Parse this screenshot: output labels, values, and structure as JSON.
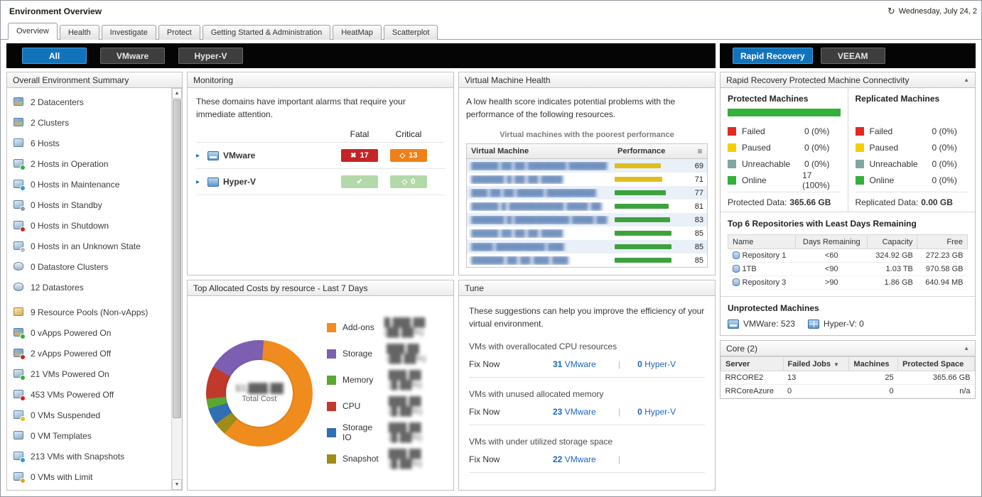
{
  "colors": {
    "accent_blue": "#1173bc",
    "fatal_red": "#c32427",
    "critical_orange": "#ef8018",
    "ok_green": "#b3d9aa",
    "online_green": "#35b03b",
    "link_blue": "#1766c0",
    "alert_orange": "#d9531e"
  },
  "window": {
    "title": "Environment Overview",
    "datetime": "Wednesday, July 24, 2"
  },
  "tabs": [
    {
      "label": "Overview",
      "active": true
    },
    {
      "label": "Health",
      "active": false
    },
    {
      "label": "Investigate",
      "active": false
    },
    {
      "label": "Protect",
      "active": false
    },
    {
      "label": "Getting Started & Administration",
      "active": false
    },
    {
      "label": "HeatMap",
      "active": false
    },
    {
      "label": "Scatterplot",
      "active": false
    }
  ],
  "toolbar": {
    "left": [
      {
        "label": "All",
        "active": true
      },
      {
        "label": "VMware",
        "active": false
      },
      {
        "label": "Hyper-V",
        "active": false
      }
    ],
    "right": [
      {
        "label": "Rapid Recovery",
        "active": true
      },
      {
        "label": "VEEAM",
        "active": false
      }
    ]
  },
  "summary": {
    "title": "Overall Environment Summary",
    "items": [
      {
        "label": "2 Datacenters",
        "icon": "datacenter-icon",
        "shape": "grid",
        "dot": null,
        "gap": false
      },
      {
        "label": "2 Clusters",
        "icon": "cluster-icon",
        "shape": "grid",
        "dot": null,
        "gap": false
      },
      {
        "label": "6 Hosts",
        "icon": "host-icon",
        "shape": "monitor",
        "dot": null,
        "gap": false
      },
      {
        "label": "2 Hosts in Operation",
        "icon": "host-operation-icon",
        "shape": "monitor",
        "dot": "#2eb135",
        "gap": false
      },
      {
        "label": "0 Hosts in Maintenance",
        "icon": "host-maintenance-icon",
        "shape": "monitor",
        "dot": "#2e9bd6",
        "gap": false
      },
      {
        "label": "0 Hosts in Standby",
        "icon": "host-standby-icon",
        "shape": "monitor",
        "dot": "#8a9aa8",
        "gap": false
      },
      {
        "label": "0 Hosts in Shutdown",
        "icon": "host-shutdown-icon",
        "shape": "monitor",
        "dot": "#d42020",
        "gap": false
      },
      {
        "label": "0 Hosts in an Unknown State",
        "icon": "host-unknown-icon",
        "shape": "monitor",
        "dot": "#b8b8b8",
        "gap": false
      },
      {
        "label": "0 Datastore Clusters",
        "icon": "datastore-cluster-icon",
        "shape": "cylinder",
        "dot": null,
        "gap": false
      },
      {
        "label": "12 Datastores",
        "icon": "datastore-icon",
        "shape": "cylinder",
        "dot": null,
        "gap": false
      },
      {
        "label": "9 Resource Pools (Non-vApps)",
        "icon": "resource-pool-icon",
        "shape": "box",
        "dot": null,
        "gap": true
      },
      {
        "label": "0 vApps Powered On",
        "icon": "vapp-powered-on-icon",
        "shape": "grid",
        "dot": "#2eb135",
        "gap": false
      },
      {
        "label": "2 vApps Powered Off",
        "icon": "vapp-powered-off-icon",
        "shape": "grid",
        "dot": "#d42020",
        "gap": false
      },
      {
        "label": "21 VMs Powered On",
        "icon": "vm-powered-on-icon",
        "shape": "monitor",
        "dot": "#2eb135",
        "gap": false
      },
      {
        "label": "453 VMs Powered Off",
        "icon": "vm-powered-off-icon",
        "shape": "monitor",
        "dot": "#d42020",
        "gap": false
      },
      {
        "label": "0 VMs Suspended",
        "icon": "vm-suspended-icon",
        "shape": "monitor",
        "dot": "#e8c020",
        "gap": false
      },
      {
        "label": "0 VM Templates",
        "icon": "vm-template-icon",
        "shape": "monitor",
        "dot": null,
        "gap": false
      },
      {
        "label": "213 VMs with Snapshots",
        "icon": "vm-snapshot-icon",
        "shape": "monitor",
        "dot": "#2e9bd6",
        "gap": false
      },
      {
        "label": "0 VMs with Limit",
        "icon": "vm-limit-icon",
        "shape": "monitor",
        "dot": "#e8a020",
        "gap": false
      }
    ]
  },
  "monitoring": {
    "title": "Monitoring",
    "intro": "These domains have important alarms that require your immediate attention.",
    "columns": {
      "fatal": "Fatal",
      "critical": "Critical"
    },
    "rows": [
      {
        "name": "VMware",
        "icon": "vmware-domain-icon",
        "fatal_count": "17",
        "critical_count": "13",
        "ok": false
      },
      {
        "name": "Hyper-V",
        "icon": "hyperv-domain-icon",
        "fatal_count": "",
        "critical_count": "0",
        "ok": true
      }
    ]
  },
  "costs": {
    "title": "Top Allocated Costs by resource - Last 7 Days",
    "center_value": "$3,███.██",
    "center_label": "Total Cost",
    "legend": [
      {
        "label": "Add-ons",
        "value": "█,███.██ (██.██%)",
        "color": "#f08c1e"
      },
      {
        "label": "Storage",
        "value": "███.██ (██.██%)",
        "color": "#7d5fb2"
      },
      {
        "label": "Memory",
        "value": "███.██ (█.██%)",
        "color": "#58a832"
      },
      {
        "label": "CPU",
        "value": "███.██ (█.██%)",
        "color": "#c03a2b"
      },
      {
        "label": "Storage IO",
        "value": "███.██ (█.██%)",
        "color": "#2f6fb2"
      },
      {
        "label": "Snapshot",
        "value": "███.██ (█.██%)",
        "color": "#a08c1a"
      }
    ]
  },
  "vm_health": {
    "title": "Virtual Machine Health",
    "intro": "A low health score indicates potential problems with the performance of the following resources.",
    "subtitle": "Virtual machines with the poorest performance",
    "columns": {
      "vm": "Virtual Machine",
      "performance": "Performance"
    },
    "options_icon": "grid-options-icon",
    "rows": [
      {
        "name": "█████ ██ ██ ███████ ███████",
        "score": 69,
        "bar_color": "#ddbf1d"
      },
      {
        "name": "██████ █ ██ ██ ████",
        "score": 71,
        "bar_color": "#ddbf1d"
      },
      {
        "name": "███ ██ ██ █████ █████████",
        "score": 77,
        "bar_color": "#3da23d"
      },
      {
        "name": "█████ █ ██████████ ████ ██",
        "score": 81,
        "bar_color": "#3da23d"
      },
      {
        "name": "██████ █ ██████████ ████ ██",
        "score": 83,
        "bar_color": "#3da23d"
      },
      {
        "name": "█████ ██ ██ ██ ████",
        "score": 85,
        "bar_color": "#3da23d"
      },
      {
        "name": "████ █████████ ███",
        "score": 85,
        "bar_color": "#3da23d"
      },
      {
        "name": "██████ ██ ██ ███ ███",
        "score": 85,
        "bar_color": "#3da23d"
      }
    ]
  },
  "tune": {
    "title": "Tune",
    "intro": "These suggestions can help you improve the efficiency of your virtual environment.",
    "sections": [
      {
        "heading": "VMs with overallocated CPU resources",
        "action": "Fix Now",
        "vmware_link": "31 VMware",
        "hyperv_link": "0 Hyper-V"
      },
      {
        "heading": "VMs with unused allocated memory",
        "action": "Fix Now",
        "vmware_link": "23 VMware",
        "hyperv_link": "0 Hyper-V"
      },
      {
        "heading": "VMs with under utilized storage space",
        "action": "Fix Now",
        "vmware_link": "22 VMware",
        "hyperv_link": ""
      }
    ]
  },
  "rapid_recovery": {
    "title": "Rapid Recovery Protected Machine Connectivity",
    "protected": {
      "heading": "Protected Machines",
      "bar_color": "#35b03b",
      "legend": [
        {
          "label": "Failed",
          "value": "0 (0%)",
          "color": "#e02b20"
        },
        {
          "label": "Paused",
          "value": "0 (0%)",
          "color": "#f5d000"
        },
        {
          "label": "Unreachable",
          "value": "0 (0%)",
          "color": "#7fa8a0"
        },
        {
          "label": "Online",
          "value": "17 (100%)",
          "color": "#35b03b"
        }
      ],
      "data_label": "Protected Data:",
      "data_value": "365.66 GB"
    },
    "replicated": {
      "heading": "Replicated Machines",
      "legend": [
        {
          "label": "Failed",
          "value": "0 (0%)",
          "color": "#e02b20"
        },
        {
          "label": "Paused",
          "value": "0 (0%)",
          "color": "#f5d000"
        },
        {
          "label": "Unreachable",
          "value": "0 (0%)",
          "color": "#7fa8a0"
        },
        {
          "label": "Online",
          "value": "0 (0%)",
          "color": "#35b03b"
        }
      ],
      "data_label": "Replicated Data:",
      "data_value": "0.00 GB"
    },
    "repositories": {
      "heading": "Top 6 Repositories with Least Days Remaining",
      "columns": [
        "Name",
        "Days Remaining",
        "Capacity",
        "Free"
      ],
      "rows": [
        {
          "name": "Repository 1",
          "days": "<60",
          "capacity": "324.92 GB",
          "free": "272.23 GB"
        },
        {
          "name": "1TB",
          "days": "<90",
          "capacity": "1.03 TB",
          "free": "970.58 GB"
        },
        {
          "name": "Repository 3",
          "days": ">90",
          "capacity": "1.86 GB",
          "free": "640.94 MB"
        }
      ]
    },
    "unprotected": {
      "heading": "Unprotected Machines",
      "vmware": "VMWare: 523",
      "hyperv": "Hyper-V: 0"
    }
  },
  "core": {
    "title": "Core (2)",
    "columns": [
      "Server",
      "Failed Jobs",
      "Machines",
      "Protected Space"
    ],
    "sort_column": "Failed Jobs",
    "rows": [
      {
        "server": "RRCORE2",
        "failed_jobs": "13",
        "machines": "25",
        "protected_space": "365.66 GB",
        "alert": true
      },
      {
        "server": "RRCoreAzure",
        "failed_jobs": "0",
        "machines": "0",
        "protected_space": "n/a",
        "alert": false
      }
    ]
  },
  "chart_data": [
    {
      "type": "pie",
      "title": "Top Allocated Costs by resource - Last 7 Days",
      "donut": true,
      "center_label": "Total Cost",
      "start_angle_deg": -60,
      "segments": [
        {
          "name": "Storage",
          "percent": 18,
          "color": "#7d5fb2"
        },
        {
          "name": "Add-ons",
          "percent": 60,
          "color": "#f08c1e"
        },
        {
          "name": "Snapshot",
          "percent": 4,
          "color": "#a08c1a"
        },
        {
          "name": "Storage IO",
          "percent": 5,
          "color": "#2f6fb2"
        },
        {
          "name": "Memory",
          "percent": 3,
          "color": "#58a832"
        },
        {
          "name": "CPU",
          "percent": 10,
          "color": "#c03a2b"
        }
      ],
      "legend_position": "right"
    },
    {
      "type": "bar",
      "title": "Virtual machines with the poorest performance",
      "categories": [
        "vm-1",
        "vm-2",
        "vm-3",
        "vm-4",
        "vm-5",
        "vm-6",
        "vm-7",
        "vm-8"
      ],
      "values": [
        69,
        71,
        77,
        81,
        83,
        85,
        85,
        85
      ],
      "xlabel": "Virtual Machine",
      "ylabel": "Performance",
      "ylim": [
        0,
        100
      ]
    }
  ]
}
